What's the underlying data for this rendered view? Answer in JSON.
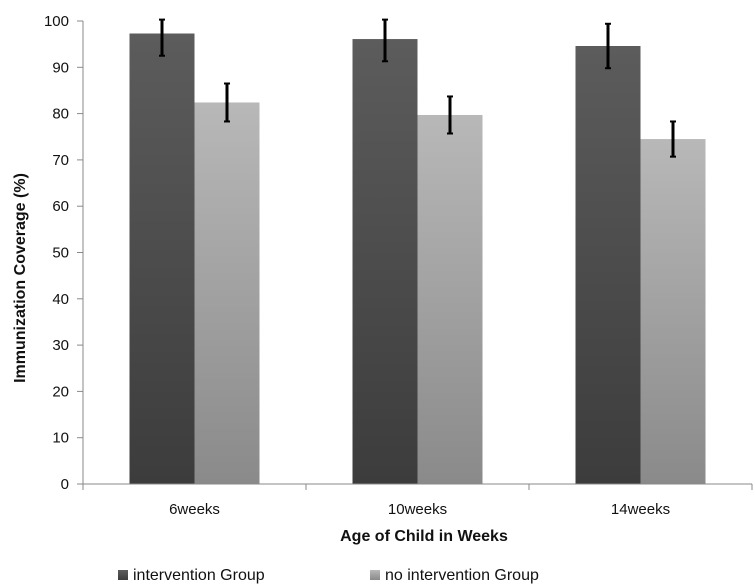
{
  "chart_data": {
    "type": "bar",
    "title": "",
    "xlabel": "Age of Child in Weeks",
    "ylabel": "Immunization Coverage (%)",
    "categories": [
      "6weeks",
      "10weeks",
      "14weeks"
    ],
    "ylim": [
      0,
      100
    ],
    "ytick_step": 10,
    "grid": false,
    "legend_position": "bottom",
    "series": [
      {
        "name": "intervention Group",
        "values": [
          97.3,
          96.1,
          94.6
        ],
        "error": [
          4.8,
          4.8,
          4.8
        ],
        "color_top": "#5c5c5c",
        "color_bottom": "#3c3c3c"
      },
      {
        "name": "no intervention Group",
        "values": [
          82.4,
          79.7,
          74.5
        ],
        "error": [
          4.1,
          4.0,
          3.8
        ],
        "color_top": "#b8b8b8",
        "color_bottom": "#8a8a8a"
      }
    ],
    "error_bar_color": "#000000"
  }
}
